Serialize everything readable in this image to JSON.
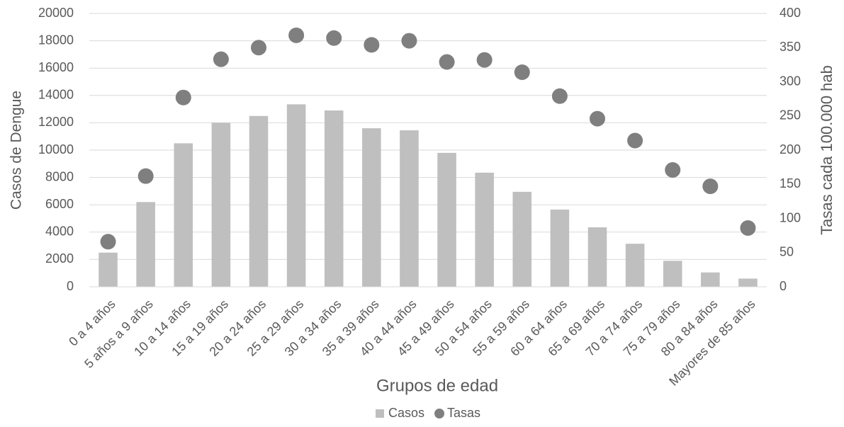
{
  "chart_data": {
    "type": "bar",
    "x_label": "Grupos de edad",
    "y_label": "Casos de Dengue",
    "y2_label": "Tasas  cada 100.000 hab",
    "categories": [
      "0 a 4 años",
      "5 años a 9 años",
      "10 a 14 años",
      "15 a 19 años",
      "20 a 24 años",
      "25 a 29 años",
      "30 a 34 años",
      "35 a 39 años",
      "40 a 44 años",
      "45 a 49 años",
      "50 a 54 años",
      "55 a 59 años",
      "60 a 64 años",
      "65 a 69 años",
      "70 a  74 años",
      "75 a 79 años",
      "80 a 84 años",
      "Mayores de 85 años"
    ],
    "series": [
      {
        "name": "Casos",
        "color": "#bfbfbf",
        "type": "bar",
        "values": [
          2500,
          6200,
          10500,
          12000,
          12500,
          13350,
          12900,
          11600,
          11450,
          9800,
          8350,
          6950,
          5650,
          4350,
          3150,
          1900,
          1050,
          600
        ]
      },
      {
        "name": "Tasas",
        "color": "#7f7f7f",
        "type": "scatter",
        "axis": "y2",
        "values": [
          66,
          162,
          277,
          333,
          350,
          368,
          364,
          354,
          360,
          329,
          332,
          314,
          279,
          246,
          214,
          171,
          147,
          86
        ]
      }
    ],
    "ylim": [
      0,
      20000
    ],
    "yticks": [
      0,
      2000,
      4000,
      6000,
      8000,
      10000,
      12000,
      14000,
      16000,
      18000,
      20000
    ],
    "y2lim": [
      0,
      400
    ],
    "y2ticks": [
      0,
      50,
      100,
      150,
      200,
      250,
      300,
      350,
      400
    ],
    "grid": true,
    "legend": "bottom"
  }
}
